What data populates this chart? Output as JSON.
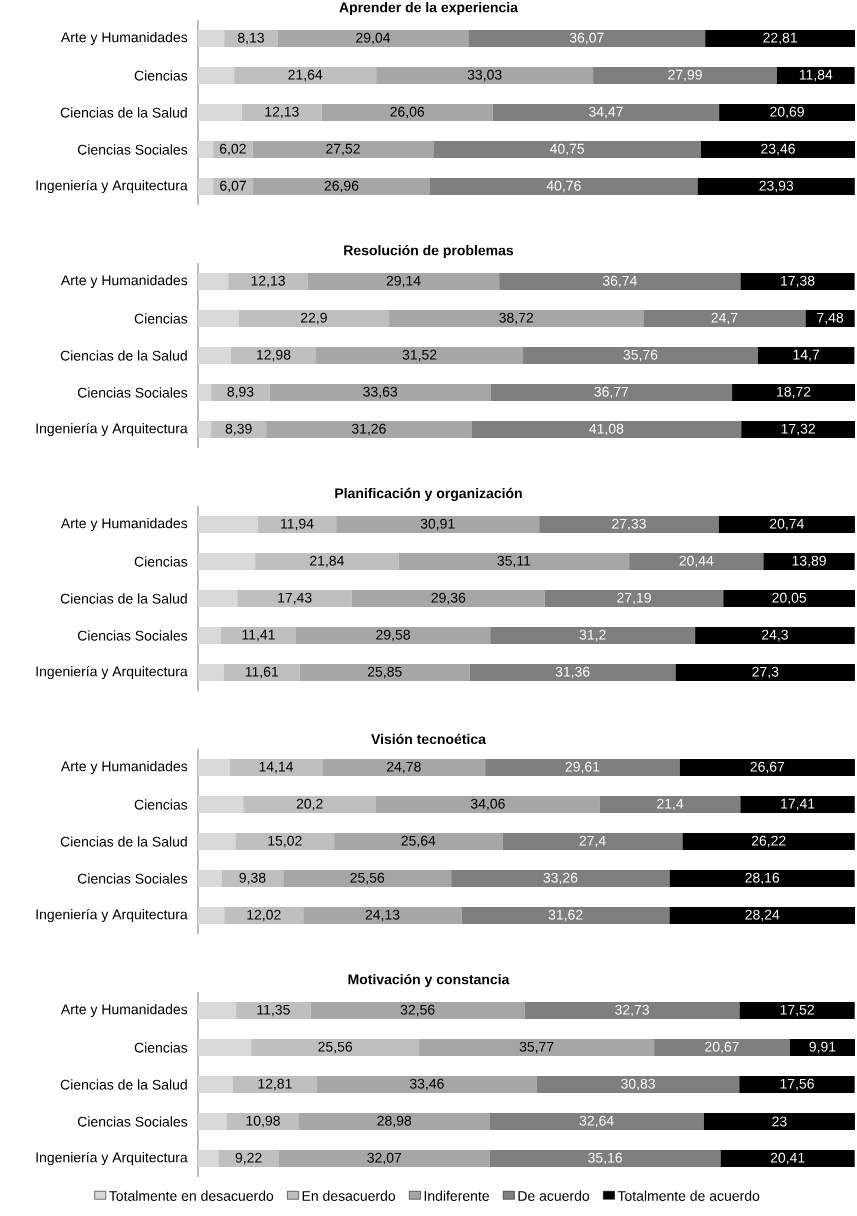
{
  "chart_data": [
    {
      "type": "bar",
      "orientation": "horizontal",
      "stacked": true,
      "title": "Aprender de la experiencia",
      "categories": [
        "Arte y Humanidades",
        "Ciencias",
        "Ciencias de la Salud",
        "Ciencias Sociales",
        "Ingeniería y Arquitectura"
      ],
      "legend": false,
      "series": [
        {
          "color": "#d9d9d9",
          "values": [
            4.0,
            5.5,
            6.7,
            2.3,
            2.3
          ]
        },
        {
          "color": "#bfbfbf",
          "values": [
            8.13,
            21.64,
            12.13,
            6.02,
            6.07
          ],
          "value_labels": [
            "8,13",
            "21,64",
            "12,13",
            "6,02",
            "6,07"
          ]
        },
        {
          "color": "#a6a6a6",
          "values": [
            29.04,
            33.03,
            26.06,
            27.52,
            26.96
          ],
          "value_labels": [
            "29,04",
            "33,03",
            "26,06",
            "27,52",
            "26,96"
          ]
        },
        {
          "color": "#7f7f7f",
          "values": [
            36.07,
            27.99,
            34.47,
            40.75,
            40.76
          ],
          "value_labels": [
            "36,07",
            "27,99",
            "34,47",
            "40,75",
            "40,76"
          ]
        },
        {
          "color": "#000000",
          "values": [
            22.81,
            11.84,
            20.69,
            23.46,
            23.93
          ],
          "value_labels": [
            "22,81",
            "11,84",
            "20,69",
            "23,46",
            "23,93"
          ]
        }
      ]
    },
    {
      "type": "bar",
      "orientation": "horizontal",
      "stacked": true,
      "title": "Resolución de problemas",
      "categories": [
        "Arte y Humanidades",
        "Ciencias",
        "Ciencias de la Salud",
        "Ciencias Sociales",
        "Ingeniería y Arquitectura"
      ],
      "legend": false,
      "series": [
        {
          "color": "#d9d9d9",
          "values": [
            4.6,
            6.2,
            5.0,
            2.0,
            2.0
          ]
        },
        {
          "color": "#bfbfbf",
          "values": [
            12.13,
            22.9,
            12.98,
            8.93,
            8.39
          ],
          "value_labels": [
            "12,13",
            "22,9",
            "12,98",
            "8,93",
            "8,39"
          ]
        },
        {
          "color": "#a6a6a6",
          "values": [
            29.14,
            38.72,
            31.52,
            33.63,
            31.26
          ],
          "value_labels": [
            "29,14",
            "38,72",
            "31,52",
            "33,63",
            "31,26"
          ]
        },
        {
          "color": "#7f7f7f",
          "values": [
            36.74,
            24.7,
            35.76,
            36.77,
            41.08
          ],
          "value_labels": [
            "36,74",
            "24,7",
            "35,76",
            "36,77",
            "41,08"
          ]
        },
        {
          "color": "#000000",
          "values": [
            17.38,
            7.48,
            14.7,
            18.72,
            17.32
          ],
          "value_labels": [
            "17,38",
            "7,48",
            "14,7",
            "18,72",
            "17,32"
          ]
        }
      ]
    },
    {
      "type": "bar",
      "orientation": "horizontal",
      "stacked": true,
      "title": "Planificación y organización",
      "categories": [
        "Arte y Humanidades",
        "Ciencias",
        "Ciencias de la Salud",
        "Ciencias Sociales",
        "Ingeniería y Arquitectura"
      ],
      "legend": false,
      "series": [
        {
          "color": "#d9d9d9",
          "values": [
            9.1,
            8.7,
            6.0,
            3.5,
            3.9
          ]
        },
        {
          "color": "#bfbfbf",
          "values": [
            11.94,
            21.84,
            17.43,
            11.41,
            11.61
          ],
          "value_labels": [
            "11,94",
            "21,84",
            "17,43",
            "11,41",
            "11,61"
          ]
        },
        {
          "color": "#a6a6a6",
          "values": [
            30.91,
            35.11,
            29.36,
            29.58,
            25.85
          ],
          "value_labels": [
            "30,91",
            "35,11",
            "29,36",
            "29,58",
            "25,85"
          ]
        },
        {
          "color": "#7f7f7f",
          "values": [
            27.33,
            20.44,
            27.19,
            31.2,
            31.36
          ],
          "value_labels": [
            "27,33",
            "20,44",
            "27,19",
            "31,2",
            "31,36"
          ]
        },
        {
          "color": "#000000",
          "values": [
            20.74,
            13.89,
            20.05,
            24.3,
            27.3
          ],
          "value_labels": [
            "20,74",
            "13,89",
            "20,05",
            "24,3",
            "27,3"
          ]
        }
      ]
    },
    {
      "type": "bar",
      "orientation": "horizontal",
      "stacked": true,
      "title": "Visión tecnoética",
      "categories": [
        "Arte y Humanidades",
        "Ciencias",
        "Ciencias de la Salud",
        "Ciencias Sociales",
        "Ingeniería y Arquitectura"
      ],
      "legend": false,
      "series": [
        {
          "color": "#d9d9d9",
          "values": [
            4.8,
            6.9,
            5.7,
            3.6,
            4.0
          ]
        },
        {
          "color": "#bfbfbf",
          "values": [
            14.14,
            20.2,
            15.02,
            9.38,
            12.02
          ],
          "value_labels": [
            "14,14",
            "20,2",
            "15,02",
            "9,38",
            "12,02"
          ]
        },
        {
          "color": "#a6a6a6",
          "values": [
            24.78,
            34.06,
            25.64,
            25.56,
            24.13
          ],
          "value_labels": [
            "24,78",
            "34,06",
            "25,64",
            "25,56",
            "24,13"
          ]
        },
        {
          "color": "#7f7f7f",
          "values": [
            29.61,
            21.4,
            27.4,
            33.26,
            31.62
          ],
          "value_labels": [
            "29,61",
            "21,4",
            "27,4",
            "33,26",
            "31,62"
          ]
        },
        {
          "color": "#000000",
          "values": [
            26.67,
            17.41,
            26.22,
            28.16,
            28.24
          ],
          "value_labels": [
            "26,67",
            "17,41",
            "26,22",
            "28,16",
            "28,24"
          ]
        }
      ]
    },
    {
      "type": "bar",
      "orientation": "horizontal",
      "stacked": true,
      "title": "Motivación y constancia",
      "categories": [
        "Arte y Humanidades",
        "Ciencias",
        "Ciencias de la Salud",
        "Ciencias Sociales",
        "Ingeniería y Arquitectura"
      ],
      "legend": "bottom",
      "series": [
        {
          "name": "Totalmente en desacuerdo",
          "color": "#d9d9d9",
          "values": [
            5.8,
            8.1,
            5.3,
            4.4,
            3.1
          ]
        },
        {
          "name": "En desacuerdo",
          "color": "#bfbfbf",
          "values": [
            11.35,
            25.56,
            12.81,
            10.98,
            9.22
          ],
          "value_labels": [
            "11,35",
            "25,56",
            "12,81",
            "10,98",
            "9,22"
          ]
        },
        {
          "name": "Indiferente",
          "color": "#a6a6a6",
          "values": [
            32.56,
            35.77,
            33.46,
            28.98,
            32.07
          ],
          "value_labels": [
            "32,56",
            "35,77",
            "33,46",
            "28,98",
            "32,07"
          ]
        },
        {
          "name": "De acuerdo",
          "color": "#7f7f7f",
          "values": [
            32.73,
            20.67,
            30.83,
            32.64,
            35.16
          ],
          "value_labels": [
            "32,73",
            "20,67",
            "30,83",
            "32,64",
            "35,16"
          ]
        },
        {
          "name": "Totalmente de acuerdo",
          "color": "#000000",
          "values": [
            17.52,
            9.91,
            17.56,
            23,
            20.41
          ],
          "value_labels": [
            "17,52",
            "9,91",
            "17,56",
            "23",
            "20,41"
          ]
        }
      ]
    }
  ]
}
